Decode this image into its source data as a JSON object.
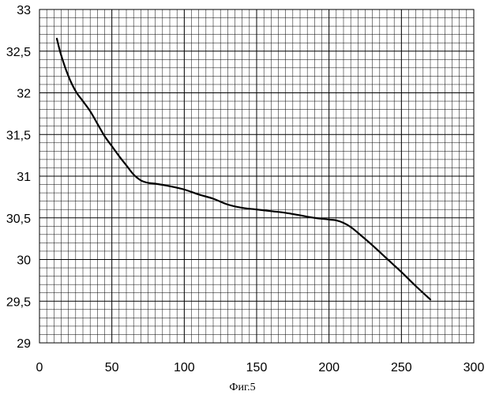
{
  "chart_data": {
    "type": "line",
    "title": "",
    "xlabel": "",
    "ylabel": "",
    "caption": "Фиг.5",
    "xlim": [
      0,
      300
    ],
    "ylim": [
      29,
      33
    ],
    "x_ticks": [
      0,
      50,
      100,
      150,
      200,
      250,
      300
    ],
    "x_tick_labels": [
      "0",
      "50",
      "100",
      "150",
      "200",
      "250",
      "300"
    ],
    "y_ticks": [
      29,
      29.5,
      30,
      30.5,
      31,
      31.5,
      32,
      32.5,
      33
    ],
    "y_tick_labels": [
      "29",
      "29,5",
      "30",
      "30,5",
      "31",
      "31,5",
      "32",
      "32,5",
      "33"
    ],
    "grid": true,
    "minor_grid_x_step": 5,
    "minor_grid_y_step": 0.1,
    "legend": "none",
    "series": [
      {
        "x": [
          12,
          15,
          20,
          25,
          30,
          35,
          40,
          45,
          50,
          55,
          60,
          65,
          70,
          75,
          80,
          90,
          100,
          110,
          120,
          130,
          140,
          150,
          160,
          170,
          180,
          190,
          200,
          205,
          210,
          215,
          220,
          230,
          240,
          250,
          260,
          270
        ],
        "y": [
          32.65,
          32.45,
          32.2,
          32.02,
          31.9,
          31.78,
          31.63,
          31.48,
          31.36,
          31.24,
          31.13,
          31.02,
          30.95,
          30.92,
          30.91,
          30.88,
          30.84,
          30.78,
          30.73,
          30.66,
          30.62,
          30.6,
          30.58,
          30.56,
          30.53,
          30.5,
          30.48,
          30.47,
          30.44,
          30.39,
          30.32,
          30.17,
          30.01,
          29.85,
          29.68,
          29.52
        ],
        "color": "#000000"
      }
    ]
  }
}
